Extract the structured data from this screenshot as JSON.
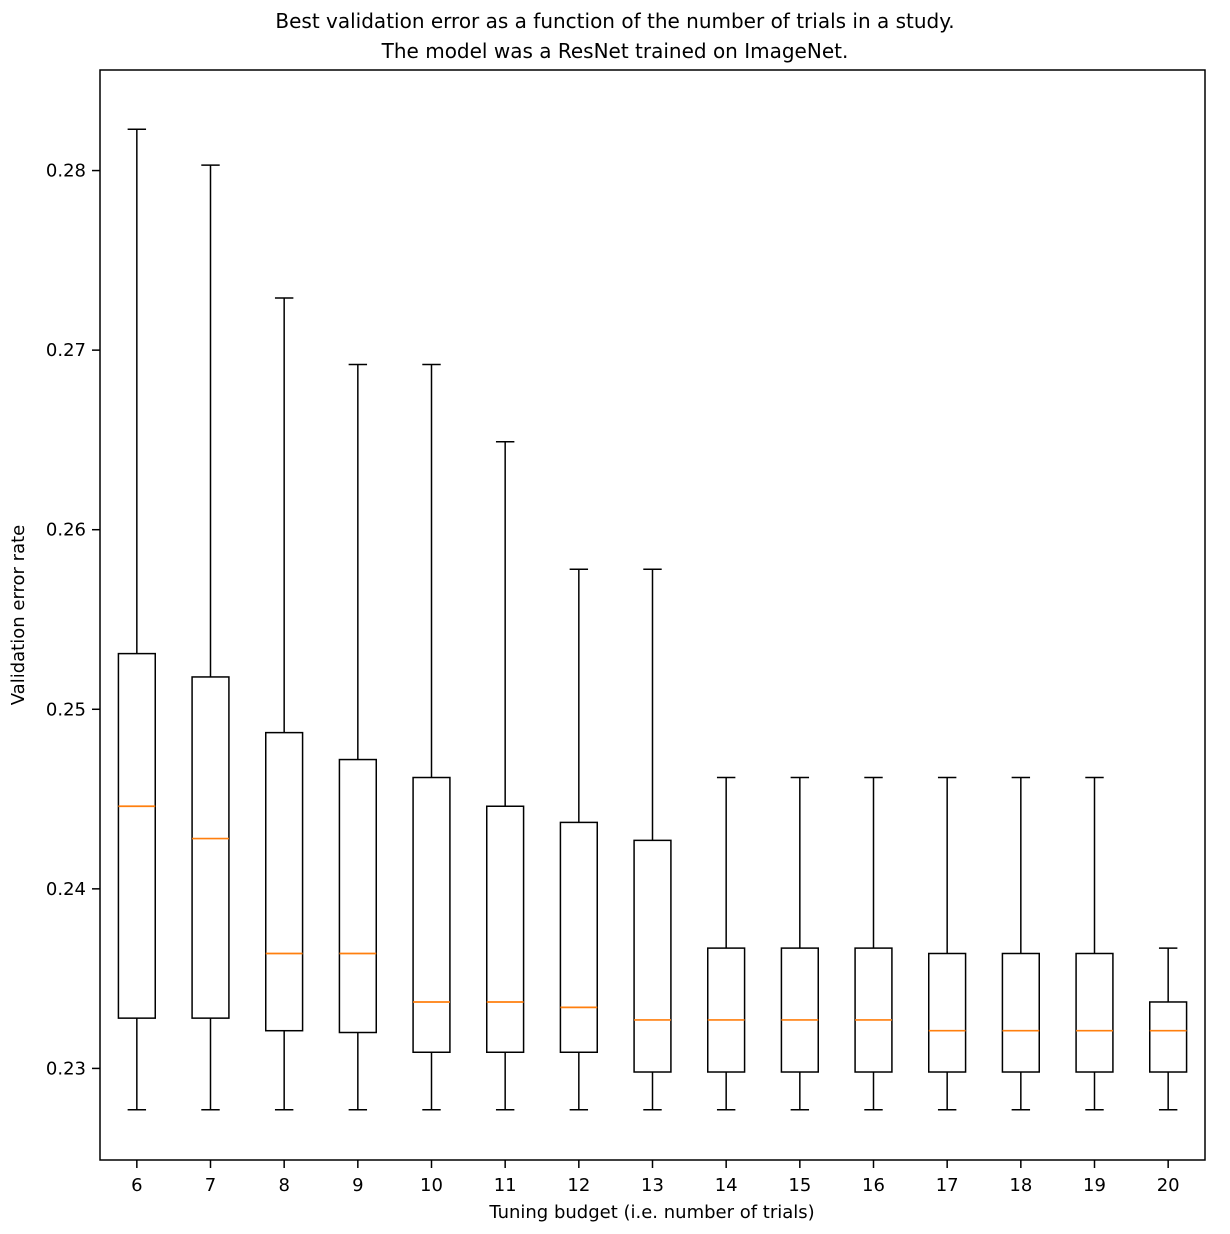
{
  "chart_data": {
    "type": "boxplot",
    "title": "Best validation error as a function of the number of trials in a study.\nThe model was a ResNet trained on ImageNet.",
    "xlabel": "Tuning budget (i.e. number of trials)",
    "ylabel": "Validation error rate",
    "categories": [
      "6",
      "7",
      "8",
      "9",
      "10",
      "11",
      "12",
      "13",
      "14",
      "15",
      "16",
      "17",
      "18",
      "19",
      "20"
    ],
    "yticks": [
      0.23,
      0.24,
      0.25,
      0.26,
      0.27,
      0.28
    ],
    "ylim": [
      0.2249,
      0.2856
    ],
    "grid": false,
    "legend": "none",
    "box_color": "#000000",
    "median_color": "#ff7f0e",
    "boxes": [
      {
        "label": "6",
        "whislo": 0.2277,
        "q1": 0.2328,
        "med": 0.2446,
        "q3": 0.2531,
        "whishi": 0.2823
      },
      {
        "label": "7",
        "whislo": 0.2277,
        "q1": 0.2328,
        "med": 0.2428,
        "q3": 0.2518,
        "whishi": 0.2803
      },
      {
        "label": "8",
        "whislo": 0.2277,
        "q1": 0.2321,
        "med": 0.2364,
        "q3": 0.2487,
        "whishi": 0.2729
      },
      {
        "label": "9",
        "whislo": 0.2277,
        "q1": 0.232,
        "med": 0.2364,
        "q3": 0.2472,
        "whishi": 0.2692
      },
      {
        "label": "10",
        "whislo": 0.2277,
        "q1": 0.2309,
        "med": 0.2337,
        "q3": 0.2462,
        "whishi": 0.2692
      },
      {
        "label": "11",
        "whislo": 0.2277,
        "q1": 0.2309,
        "med": 0.2337,
        "q3": 0.2446,
        "whishi": 0.2649
      },
      {
        "label": "12",
        "whislo": 0.2277,
        "q1": 0.2309,
        "med": 0.2334,
        "q3": 0.2437,
        "whishi": 0.2578
      },
      {
        "label": "13",
        "whislo": 0.2277,
        "q1": 0.2298,
        "med": 0.2327,
        "q3": 0.2427,
        "whishi": 0.2578
      },
      {
        "label": "14",
        "whislo": 0.2277,
        "q1": 0.2298,
        "med": 0.2327,
        "q3": 0.2367,
        "whishi": 0.2462
      },
      {
        "label": "15",
        "whislo": 0.2277,
        "q1": 0.2298,
        "med": 0.2327,
        "q3": 0.2367,
        "whishi": 0.2462
      },
      {
        "label": "16",
        "whislo": 0.2277,
        "q1": 0.2298,
        "med": 0.2327,
        "q3": 0.2367,
        "whishi": 0.2462
      },
      {
        "label": "17",
        "whislo": 0.2277,
        "q1": 0.2298,
        "med": 0.2321,
        "q3": 0.2364,
        "whishi": 0.2462
      },
      {
        "label": "18",
        "whislo": 0.2277,
        "q1": 0.2298,
        "med": 0.2321,
        "q3": 0.2364,
        "whishi": 0.2462
      },
      {
        "label": "19",
        "whislo": 0.2277,
        "q1": 0.2298,
        "med": 0.2321,
        "q3": 0.2364,
        "whishi": 0.2462
      },
      {
        "label": "20",
        "whislo": 0.2277,
        "q1": 0.2298,
        "med": 0.2321,
        "q3": 0.2337,
        "whishi": 0.2367
      }
    ]
  }
}
